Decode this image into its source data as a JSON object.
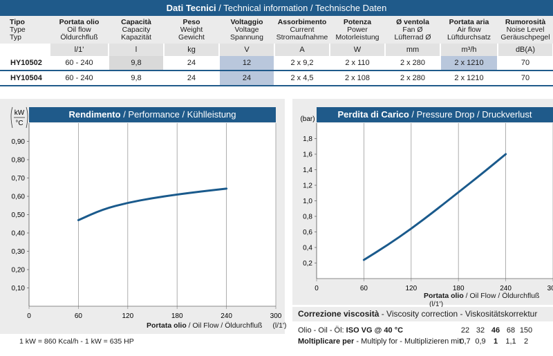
{
  "table": {
    "title_bold": "Dati Tecnici",
    "title_rest": " / Technical information / Technische Daten",
    "columns": [
      {
        "it": "Tipo",
        "en": "Type",
        "de": "Typ",
        "unit": ""
      },
      {
        "it": "Portata olio",
        "en": "Oil flow",
        "de": "Öldurchfluß",
        "unit": "l/1'"
      },
      {
        "it": "Capacità",
        "en": "Capacity",
        "de": "Kapazität",
        "unit": "l"
      },
      {
        "it": "Peso",
        "en": "Weight",
        "de": "Gewicht",
        "unit": "kg"
      },
      {
        "it": "Voltaggio",
        "en": "Voltage",
        "de": "Spannung",
        "unit": "V"
      },
      {
        "it": "Assorbimento",
        "en": "Current",
        "de": "Stromaufnahme",
        "unit": "A"
      },
      {
        "it": "Potenza",
        "en": "Power",
        "de": "Motorleistung",
        "unit": "W"
      },
      {
        "it": "Ø ventola",
        "en": "Fan Ø",
        "de": "Lüfterrad Ø",
        "unit": "mm"
      },
      {
        "it": "Portata aria",
        "en": "Air flow",
        "de": "Lüftdurchsatz",
        "unit": "m³/h"
      },
      {
        "it": "Rumorosità",
        "en": "Noise Level",
        "de": "Geräuschpegel",
        "unit": "dB(A)"
      }
    ],
    "rows": [
      [
        "HY10502",
        "60 - 240",
        "9,8",
        "24",
        "12",
        "2 x 9,2",
        "2 x 110",
        "2 x 280",
        "2 x 1210",
        "70"
      ],
      [
        "HY10504",
        "60 - 240",
        "9,8",
        "24",
        "24",
        "2 x 4,5",
        "2 x 108",
        "2 x 280",
        "2 x 1210",
        "70"
      ]
    ]
  },
  "performance_chart": {
    "title_bold": "Rendimento",
    "title_rest": " / Performance / Kühlleistung",
    "unit_top": "kW",
    "unit_bottom": "°C",
    "x_label_bold": "Portata olio",
    "x_label_rest": " / Oil Flow / Öldurchfluß",
    "x_unit": "(l/1')",
    "x_ticks": [
      "0",
      "60",
      "120",
      "180",
      "240",
      "300"
    ],
    "y_ticks": [
      "0,10",
      "0,20",
      "0,30",
      "0,40",
      "0,50",
      "0,60",
      "0,70",
      "0,80",
      "0,90"
    ],
    "note": "1 kW = 860 Kcal/h  - 1 kW = 635 HP"
  },
  "pressure_chart": {
    "title_bold": "Perdita di Carico",
    "title_rest": " / Pressure Drop / Druckverlust",
    "y_unit": "(bar)",
    "x_label_bold": "Portata olio",
    "x_label_rest": " / Oil Flow / Öldurchfluß",
    "x_unit": "(l/1')",
    "x_ticks": [
      "0",
      "60",
      "120",
      "180",
      "240",
      "300"
    ],
    "y_ticks": [
      "0,2",
      "0,4",
      "0,6",
      "0,8",
      "1,0",
      "1,2",
      "1,4",
      "1,6",
      "1,8"
    ]
  },
  "chart_data": [
    {
      "type": "line",
      "title": "Rendimento / Performance / Kühlleistung",
      "xlabel": "Portata olio / Oil Flow / Öldurchfluß (l/1')",
      "ylabel": "kW/°C",
      "xlim": [
        0,
        300
      ],
      "ylim": [
        0,
        1.0
      ],
      "x": [
        60,
        90,
        120,
        150,
        180,
        210,
        240
      ],
      "y": [
        0.47,
        0.53,
        0.565,
        0.59,
        0.61,
        0.627,
        0.642
      ]
    },
    {
      "type": "line",
      "title": "Perdita di Carico / Pressure Drop / Druckverlust",
      "xlabel": "Portata olio / Oil Flow / Öldurchfluß (l/1')",
      "ylabel": "(bar)",
      "xlim": [
        0,
        300
      ],
      "ylim": [
        0,
        2.0
      ],
      "x": [
        60,
        90,
        120,
        150,
        180,
        210,
        240
      ],
      "y": [
        0.24,
        0.43,
        0.64,
        0.87,
        1.11,
        1.35,
        1.6
      ]
    }
  ],
  "viscosity": {
    "title_bold": "Correzione viscosità",
    "title_rest": "  -  Viscosity correction  -  Viskositätskorrektur",
    "row1_label": "Olio - Oil - Öl: ",
    "row1_label_bold": "ISO VG @ 40 °C",
    "row1_values": [
      "22",
      "32",
      "46",
      "68",
      "150"
    ],
    "row2_label_bold": "Moltiplicare per",
    "row2_label_rest": " - Multiply for - Multiplizieren mit:",
    "row2_values": [
      "0,7",
      "0,9",
      "1",
      "1,1",
      "2"
    ],
    "highlight_index": 2
  },
  "colors": {
    "brand_blue": "#1f5a8a",
    "curve": "#1a5a8c",
    "cell_blue": "#b9c7dc"
  }
}
